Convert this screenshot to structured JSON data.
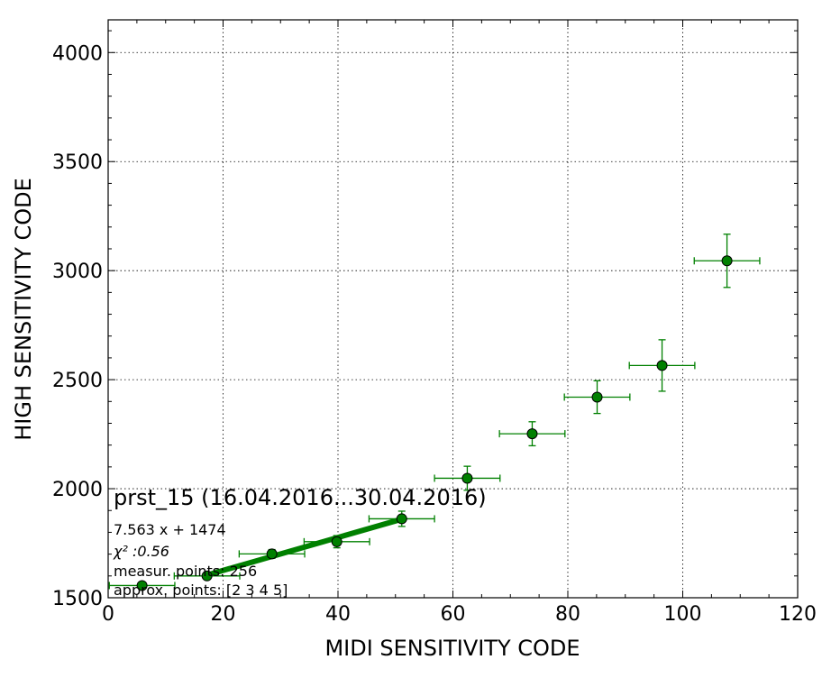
{
  "chart_data": {
    "type": "scatter",
    "title": "prst_15 (16.04.2016...30.04.2016)",
    "xlabel": "MIDI SENSITIVITY CODE",
    "ylabel": "HIGH SENSITIVITY CODE",
    "xlim": [
      0,
      120
    ],
    "ylim": [
      1500,
      4150
    ],
    "xticks": [
      0,
      20,
      40,
      60,
      80,
      100,
      120
    ],
    "yticks": [
      1500,
      2000,
      2500,
      3000,
      3500,
      4000
    ],
    "xtick_labels": [
      "0",
      "20",
      "40",
      "60",
      "80",
      "100",
      "120"
    ],
    "ytick_labels": [
      "1500",
      "2000",
      "2500",
      "3000",
      "3500",
      "4000"
    ],
    "grid": true,
    "series": [
      {
        "marker": "circle",
        "color": "#008000",
        "points": [
          {
            "x": 5.9,
            "y": 1556,
            "xerr": 5.7,
            "yerr": 12
          },
          {
            "x": 17.2,
            "y": 1600,
            "xerr": 5.7,
            "yerr": 15
          },
          {
            "x": 28.5,
            "y": 1701,
            "xerr": 5.7,
            "yerr": 20
          },
          {
            "x": 39.8,
            "y": 1757,
            "xerr": 5.7,
            "yerr": 28
          },
          {
            "x": 51.1,
            "y": 1862,
            "xerr": 5.7,
            "yerr": 35
          },
          {
            "x": 62.5,
            "y": 2048,
            "xerr": 5.7,
            "yerr": 55
          },
          {
            "x": 73.8,
            "y": 2252,
            "xerr": 5.7,
            "yerr": 55
          },
          {
            "x": 85.1,
            "y": 2420,
            "xerr": 5.7,
            "yerr": 75
          },
          {
            "x": 96.4,
            "y": 2565,
            "xerr": 5.7,
            "yerr": 118
          },
          {
            "x": 107.7,
            "y": 3045,
            "xerr": 5.7,
            "yerr": 122
          }
        ]
      }
    ],
    "fit_line": {
      "slope": 7.563,
      "intercept": 1474,
      "x_range": [
        17.2,
        51.1
      ],
      "color": "#008000"
    },
    "annotations": {
      "equation": "7.563 x + 1474",
      "chi2": "χ² :0.56",
      "measur_points": "measur. points: 256",
      "approx_points": "approx. points: [2 3 4 5]"
    }
  }
}
